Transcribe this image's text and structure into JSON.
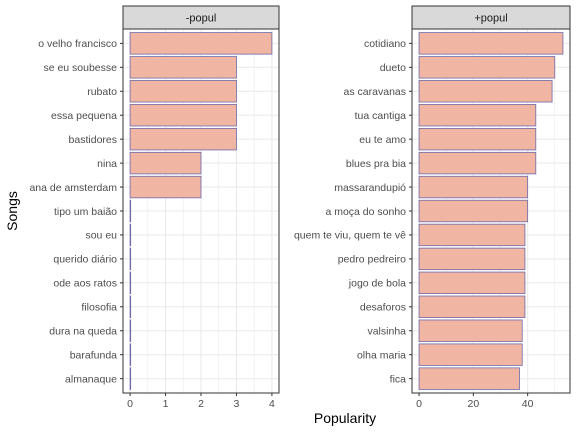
{
  "chart_data": {
    "type": "bar",
    "orientation": "horizontal",
    "xlabel": "Popularity",
    "ylabel": "Songs",
    "grid": true,
    "colors": {
      "bar_fill": "#f1b5a3",
      "bar_stroke": "#6e6aa8",
      "strip_fill": "#d9d9d9",
      "grid": "#ebebeb",
      "panel_border": "#333333"
    },
    "panels": [
      {
        "strip": "-popul",
        "xlim": [
          -0.2,
          4.2
        ],
        "xticks": [
          0,
          1,
          2,
          3,
          4
        ],
        "categories": [
          "o velho francisco",
          "se eu soubesse",
          "rubato",
          "essa pequena",
          "bastidores",
          "nina",
          "ana de amsterdam",
          "tipo um baião",
          "sou eu",
          "querido diário",
          "ode aos ratos",
          "filosofia",
          "dura na queda",
          "barafunda",
          "almanaque"
        ],
        "values": [
          4,
          3,
          3,
          3,
          3,
          2,
          2,
          0,
          0,
          0,
          0,
          0,
          0,
          0,
          0
        ]
      },
      {
        "strip": "+popul",
        "xlim": [
          -2.6,
          55.6
        ],
        "xticks": [
          0,
          20,
          40
        ],
        "categories": [
          "cotidiano",
          "dueto",
          "as caravanas",
          "tua cantiga",
          "eu te amo",
          "blues pra bia",
          "massarandupió",
          "a moça do sonho",
          "quem te viu, quem te vê",
          "pedro pedreiro",
          "jogo de bola",
          "desaforos",
          "valsinha",
          "olha maria",
          "fica"
        ],
        "values": [
          53,
          50,
          49,
          43,
          43,
          43,
          40,
          40,
          39,
          39,
          39,
          39,
          38,
          38,
          37
        ]
      }
    ]
  }
}
